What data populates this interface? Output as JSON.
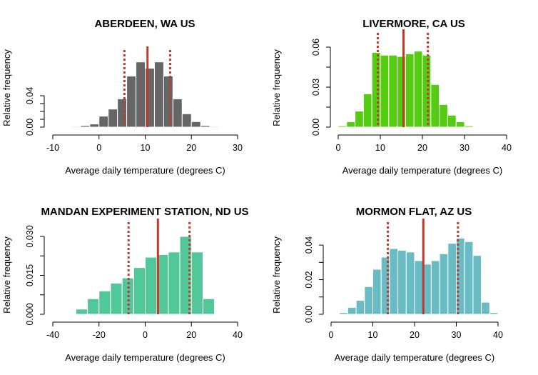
{
  "chart_data": [
    {
      "type": "bar",
      "title": "ABERDEEN, WA US",
      "xlabel": "Average daily temperature (degrees C)",
      "ylabel": "Relative frequency",
      "color": "#666666",
      "line_color": "#C0392B",
      "xlim": [
        -10,
        30
      ],
      "ylim": [
        0,
        0.08
      ],
      "xticks": [
        -10,
        0,
        10,
        20,
        30
      ],
      "yticks": [
        0.0,
        0.04
      ],
      "ytick_labels": [
        "0.00",
        "0.04"
      ],
      "bin_width": 2,
      "bins": [
        {
          "start": -6,
          "value": 0.001
        },
        {
          "start": -4,
          "value": 0.002
        },
        {
          "start": -2,
          "value": 0.004
        },
        {
          "start": 0,
          "value": 0.014
        },
        {
          "start": 2,
          "value": 0.023
        },
        {
          "start": 4,
          "value": 0.036
        },
        {
          "start": 6,
          "value": 0.065
        },
        {
          "start": 8,
          "value": 0.083
        },
        {
          "start": 10,
          "value": 0.075
        },
        {
          "start": 12,
          "value": 0.083
        },
        {
          "start": 14,
          "value": 0.065
        },
        {
          "start": 16,
          "value": 0.036
        },
        {
          "start": 18,
          "value": 0.017
        },
        {
          "start": 20,
          "value": 0.007
        },
        {
          "start": 22,
          "value": 0.002
        },
        {
          "start": 24,
          "value": 0.001
        }
      ],
      "mean": 10.5,
      "quantile_low": 5.5,
      "quantile_high": 15.4
    },
    {
      "type": "bar",
      "title": "LIVERMORE, CA US",
      "xlabel": "Average daily temperature (degrees C)",
      "ylabel": "Relative frequency",
      "color": "#55CC11",
      "line_color": "#C0392B",
      "xlim": [
        0,
        40
      ],
      "ylim": [
        0,
        0.06
      ],
      "xticks": [
        0,
        10,
        20,
        30,
        40
      ],
      "yticks": [
        0.0,
        0.03,
        0.06
      ],
      "ytick_labels": [
        "0.00",
        "0.03",
        "0.06"
      ],
      "bin_width": 2,
      "bins": [
        {
          "start": 0,
          "value": 0.001
        },
        {
          "start": 2,
          "value": 0.004
        },
        {
          "start": 4,
          "value": 0.012
        },
        {
          "start": 6,
          "value": 0.025
        },
        {
          "start": 8,
          "value": 0.056
        },
        {
          "start": 10,
          "value": 0.054
        },
        {
          "start": 12,
          "value": 0.054
        },
        {
          "start": 14,
          "value": 0.053
        },
        {
          "start": 16,
          "value": 0.055
        },
        {
          "start": 18,
          "value": 0.057
        },
        {
          "start": 20,
          "value": 0.054
        },
        {
          "start": 22,
          "value": 0.032
        },
        {
          "start": 24,
          "value": 0.017
        },
        {
          "start": 26,
          "value": 0.009
        },
        {
          "start": 28,
          "value": 0.004
        },
        {
          "start": 30,
          "value": 0.001
        }
      ],
      "mean": 15.5,
      "quantile_low": 9.4,
      "quantile_high": 21.3
    },
    {
      "type": "bar",
      "title": "MANDAN EXPERIMENT STATION, ND US",
      "xlabel": "Average daily temperature (degrees C)",
      "ylabel": "Relative frequency",
      "color": "#52C79A",
      "line_color": "#C0392B",
      "xlim": [
        -40,
        40
      ],
      "ylim": [
        0,
        0.03
      ],
      "xticks": [
        -40,
        -20,
        0,
        20,
        40
      ],
      "yticks": [
        0.0,
        0.015,
        0.03
      ],
      "ytick_labels": [
        "0.000",
        "0.015",
        "0.030"
      ],
      "bin_width": 5,
      "bins": [
        {
          "start": -30,
          "value": 0.002
        },
        {
          "start": -25,
          "value": 0.006
        },
        {
          "start": -20,
          "value": 0.009
        },
        {
          "start": -15,
          "value": 0.012
        },
        {
          "start": -10,
          "value": 0.014
        },
        {
          "start": -5,
          "value": 0.018
        },
        {
          "start": 0,
          "value": 0.022
        },
        {
          "start": 5,
          "value": 0.023
        },
        {
          "start": 10,
          "value": 0.024
        },
        {
          "start": 15,
          "value": 0.03
        },
        {
          "start": 20,
          "value": 0.024
        },
        {
          "start": 25,
          "value": 0.006
        }
      ],
      "mean": 5.5,
      "quantile_low": -7.2,
      "quantile_high": 19.2
    },
    {
      "type": "bar",
      "title": "MORMON FLAT, AZ US",
      "xlabel": "Average daily temperature (degrees C)",
      "ylabel": "Relative frequency",
      "color": "#69BCC4",
      "line_color": "#C0392B",
      "xlim": [
        0,
        40
      ],
      "ylim": [
        0,
        0.045
      ],
      "xticks": [
        0,
        10,
        20,
        30,
        40
      ],
      "yticks": [
        0.0,
        0.02,
        0.04
      ],
      "ytick_labels": [
        "0.00",
        "0.02",
        "0.04"
      ],
      "bin_width": 2,
      "bins": [
        {
          "start": 2,
          "value": 0.001
        },
        {
          "start": 4,
          "value": 0.004
        },
        {
          "start": 6,
          "value": 0.008
        },
        {
          "start": 8,
          "value": 0.016
        },
        {
          "start": 10,
          "value": 0.026
        },
        {
          "start": 12,
          "value": 0.033
        },
        {
          "start": 14,
          "value": 0.038
        },
        {
          "start": 16,
          "value": 0.037
        },
        {
          "start": 18,
          "value": 0.036
        },
        {
          "start": 20,
          "value": 0.031
        },
        {
          "start": 22,
          "value": 0.029
        },
        {
          "start": 24,
          "value": 0.031
        },
        {
          "start": 26,
          "value": 0.035
        },
        {
          "start": 28,
          "value": 0.041
        },
        {
          "start": 30,
          "value": 0.044
        },
        {
          "start": 32,
          "value": 0.042
        },
        {
          "start": 34,
          "value": 0.034
        },
        {
          "start": 36,
          "value": 0.007
        },
        {
          "start": 38,
          "value": 0.001
        }
      ],
      "mean": 22.1,
      "quantile_low": 13.6,
      "quantile_high": 30.4
    }
  ]
}
